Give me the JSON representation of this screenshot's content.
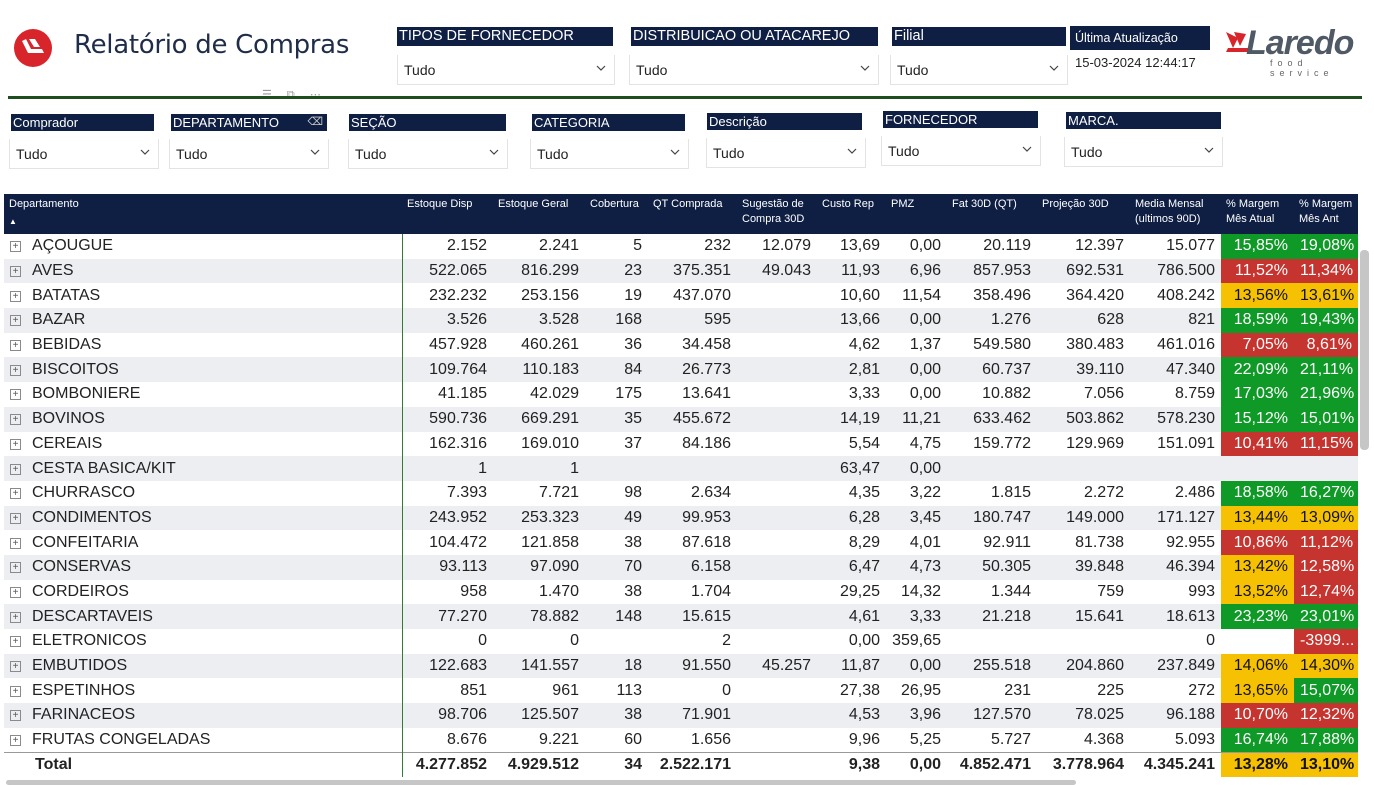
{
  "header": {
    "title": "Relatório de Compras",
    "logo_icon": "laredo-mark-icon"
  },
  "top_slicers": [
    {
      "label": "TIPOS DE FORNECEDOR",
      "value": "Tudo"
    },
    {
      "label": "DISTRIBUICAO OU ATACAREJO",
      "value": "Tudo"
    },
    {
      "label": "Filial",
      "value": "Tudo"
    }
  ],
  "update": {
    "label": "Última Atualização",
    "value": "15-03-2024 12:44:17"
  },
  "brand": {
    "name": "Laredo",
    "subtitle": "food service"
  },
  "filters": [
    {
      "label": "Comprador",
      "value": "Tudo"
    },
    {
      "label": "DEPARTAMENTO",
      "value": "Tudo"
    },
    {
      "label": "SEÇÃO",
      "value": "Tudo"
    },
    {
      "label": "CATEGORIA",
      "value": "Tudo"
    },
    {
      "label": "Descrição",
      "value": "Tudo"
    },
    {
      "label": "FORNECEDOR",
      "value": "Tudo"
    },
    {
      "label": "MARCA.",
      "value": "Tudo"
    }
  ],
  "table": {
    "columns": [
      "Departamento",
      "Estoque Disp",
      "Estoque Geral",
      "Cobertura",
      "QT Comprada",
      "Sugestão de Compra 30D",
      "Custo Rep",
      "PMZ",
      "Fat 30D (QT)",
      "Projeção 30D",
      "Media Mensal (ultimos 90D)",
      "% Margem Mês Atual",
      "% Margem Mês Ant"
    ],
    "colors": {
      "green": "#0f9a27",
      "red": "#c5342f",
      "yellow": "#f6c103"
    },
    "rows": [
      {
        "dep": "AÇOUGUE",
        "c1": "2.152",
        "c2": "2.241",
        "c3": "5",
        "c4": "232",
        "c5": "12.079",
        "c6": "13,69",
        "c7": "0,00",
        "c8": "20.119",
        "c9": "12.397",
        "c10": "15.077",
        "m1": "15,85%",
        "m1c": "green",
        "m2": "19,08%",
        "m2c": "green"
      },
      {
        "dep": "AVES",
        "c1": "522.065",
        "c2": "816.299",
        "c3": "23",
        "c4": "375.351",
        "c5": "49.043",
        "c6": "11,93",
        "c7": "6,96",
        "c8": "857.953",
        "c9": "692.531",
        "c10": "786.500",
        "m1": "11,52%",
        "m1c": "red",
        "m2": "11,34%",
        "m2c": "red"
      },
      {
        "dep": "BATATAS",
        "c1": "232.232",
        "c2": "253.156",
        "c3": "19",
        "c4": "437.070",
        "c5": "",
        "c6": "10,60",
        "c7": "11,54",
        "c8": "358.496",
        "c9": "364.420",
        "c10": "408.242",
        "m1": "13,56%",
        "m1c": "yellow",
        "m2": "13,61%",
        "m2c": "yellow"
      },
      {
        "dep": "BAZAR",
        "c1": "3.526",
        "c2": "3.528",
        "c3": "168",
        "c4": "595",
        "c5": "",
        "c6": "13,66",
        "c7": "0,00",
        "c8": "1.276",
        "c9": "628",
        "c10": "821",
        "m1": "18,59%",
        "m1c": "green",
        "m2": "19,43%",
        "m2c": "green"
      },
      {
        "dep": "BEBIDAS",
        "c1": "457.928",
        "c2": "460.261",
        "c3": "36",
        "c4": "34.458",
        "c5": "",
        "c6": "4,62",
        "c7": "1,37",
        "c8": "549.580",
        "c9": "380.483",
        "c10": "461.016",
        "m1": "7,05%",
        "m1c": "red",
        "m2": "8,61%",
        "m2c": "red"
      },
      {
        "dep": "BISCOITOS",
        "c1": "109.764",
        "c2": "110.183",
        "c3": "84",
        "c4": "26.773",
        "c5": "",
        "c6": "2,81",
        "c7": "0,00",
        "c8": "60.737",
        "c9": "39.110",
        "c10": "47.340",
        "m1": "22,09%",
        "m1c": "green",
        "m2": "21,11%",
        "m2c": "green"
      },
      {
        "dep": "BOMBONIERE",
        "c1": "41.185",
        "c2": "42.029",
        "c3": "175",
        "c4": "13.641",
        "c5": "",
        "c6": "3,33",
        "c7": "0,00",
        "c8": "10.882",
        "c9": "7.056",
        "c10": "8.759",
        "m1": "17,03%",
        "m1c": "green",
        "m2": "21,96%",
        "m2c": "green"
      },
      {
        "dep": "BOVINOS",
        "c1": "590.736",
        "c2": "669.291",
        "c3": "35",
        "c4": "455.672",
        "c5": "",
        "c6": "14,19",
        "c7": "11,21",
        "c8": "633.462",
        "c9": "503.862",
        "c10": "578.230",
        "m1": "15,12%",
        "m1c": "green",
        "m2": "15,01%",
        "m2c": "green"
      },
      {
        "dep": "CEREAIS",
        "c1": "162.316",
        "c2": "169.010",
        "c3": "37",
        "c4": "84.186",
        "c5": "",
        "c6": "5,54",
        "c7": "4,75",
        "c8": "159.772",
        "c9": "129.969",
        "c10": "151.091",
        "m1": "10,41%",
        "m1c": "red",
        "m2": "11,15%",
        "m2c": "red"
      },
      {
        "dep": "CESTA BASICA/KIT",
        "c1": "1",
        "c2": "1",
        "c3": "",
        "c4": "",
        "c5": "",
        "c6": "63,47",
        "c7": "0,00",
        "c8": "",
        "c9": "",
        "c10": "",
        "m1": "",
        "m1c": "",
        "m2": "",
        "m2c": ""
      },
      {
        "dep": "CHURRASCO",
        "c1": "7.393",
        "c2": "7.721",
        "c3": "98",
        "c4": "2.634",
        "c5": "",
        "c6": "4,35",
        "c7": "3,22",
        "c8": "1.815",
        "c9": "2.272",
        "c10": "2.486",
        "m1": "18,58%",
        "m1c": "green",
        "m2": "16,27%",
        "m2c": "green"
      },
      {
        "dep": "CONDIMENTOS",
        "c1": "243.952",
        "c2": "253.323",
        "c3": "49",
        "c4": "99.953",
        "c5": "",
        "c6": "6,28",
        "c7": "3,45",
        "c8": "180.747",
        "c9": "149.000",
        "c10": "171.127",
        "m1": "13,44%",
        "m1c": "yellow",
        "m2": "13,09%",
        "m2c": "yellow"
      },
      {
        "dep": "CONFEITARIA",
        "c1": "104.472",
        "c2": "121.858",
        "c3": "38",
        "c4": "87.618",
        "c5": "",
        "c6": "8,29",
        "c7": "4,01",
        "c8": "92.911",
        "c9": "81.738",
        "c10": "92.955",
        "m1": "10,86%",
        "m1c": "red",
        "m2": "11,12%",
        "m2c": "red"
      },
      {
        "dep": "CONSERVAS",
        "c1": "93.113",
        "c2": "97.090",
        "c3": "70",
        "c4": "6.158",
        "c5": "",
        "c6": "6,47",
        "c7": "4,73",
        "c8": "50.305",
        "c9": "39.848",
        "c10": "46.394",
        "m1": "13,42%",
        "m1c": "yellow",
        "m2": "12,58%",
        "m2c": "red"
      },
      {
        "dep": "CORDEIROS",
        "c1": "958",
        "c2": "1.470",
        "c3": "38",
        "c4": "1.704",
        "c5": "",
        "c6": "29,25",
        "c7": "14,32",
        "c8": "1.344",
        "c9": "759",
        "c10": "993",
        "m1": "13,52%",
        "m1c": "yellow",
        "m2": "12,74%",
        "m2c": "red"
      },
      {
        "dep": "DESCARTAVEIS",
        "c1": "77.270",
        "c2": "78.882",
        "c3": "148",
        "c4": "15.615",
        "c5": "",
        "c6": "4,61",
        "c7": "3,33",
        "c8": "21.218",
        "c9": "15.641",
        "c10": "18.613",
        "m1": "23,23%",
        "m1c": "green",
        "m2": "23,01%",
        "m2c": "green"
      },
      {
        "dep": "ELETRONICOS",
        "c1": "0",
        "c2": "0",
        "c3": "",
        "c4": "2",
        "c5": "",
        "c6": "0,00",
        "c7": "359,65",
        "c8": "",
        "c9": "",
        "c10": "0",
        "m1": "",
        "m1c": "",
        "m2": "-3999...",
        "m2c": "red"
      },
      {
        "dep": "EMBUTIDOS",
        "c1": "122.683",
        "c2": "141.557",
        "c3": "18",
        "c4": "91.550",
        "c5": "45.257",
        "c6": "11,87",
        "c7": "0,00",
        "c8": "255.518",
        "c9": "204.860",
        "c10": "237.849",
        "m1": "14,06%",
        "m1c": "yellow",
        "m2": "14,30%",
        "m2c": "yellow"
      },
      {
        "dep": "ESPETINHOS",
        "c1": "851",
        "c2": "961",
        "c3": "113",
        "c4": "0",
        "c5": "",
        "c6": "27,38",
        "c7": "26,95",
        "c8": "231",
        "c9": "225",
        "c10": "272",
        "m1": "13,65%",
        "m1c": "yellow",
        "m2": "15,07%",
        "m2c": "green"
      },
      {
        "dep": "FARINACEOS",
        "c1": "98.706",
        "c2": "125.507",
        "c3": "38",
        "c4": "71.901",
        "c5": "",
        "c6": "4,53",
        "c7": "3,96",
        "c8": "127.570",
        "c9": "78.025",
        "c10": "96.188",
        "m1": "10,70%",
        "m1c": "red",
        "m2": "12,32%",
        "m2c": "red"
      },
      {
        "dep": "FRUTAS CONGELADAS",
        "c1": "8.676",
        "c2": "9.221",
        "c3": "60",
        "c4": "1.656",
        "c5": "",
        "c6": "9,96",
        "c7": "5,25",
        "c8": "5.727",
        "c9": "4.368",
        "c10": "5.093",
        "m1": "16,74%",
        "m1c": "green",
        "m2": "17,88%",
        "m2c": "green"
      }
    ],
    "total": {
      "dep": "Total",
      "c1": "4.277.852",
      "c2": "4.929.512",
      "c3": "34",
      "c4": "2.522.171",
      "c5": "",
      "c6": "9,38",
      "c7": "0,00",
      "c8": "4.852.471",
      "c9": "3.778.964",
      "c10": "4.345.241",
      "m1": "13,28%",
      "m1c": "yellow",
      "m2": "13,10%",
      "m2c": "yellow"
    }
  }
}
